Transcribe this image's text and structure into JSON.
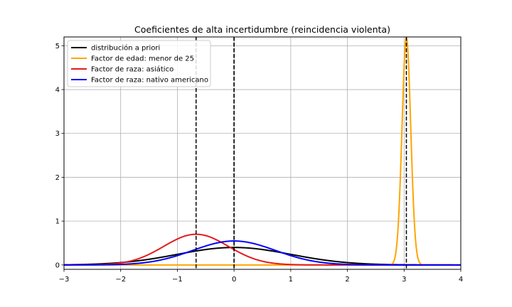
{
  "chart_data": {
    "type": "line",
    "title": "Coeficientes de alta incertidumbre (reincidencia violenta)",
    "xlabel": "",
    "ylabel": "",
    "xlim": [
      -3,
      4
    ],
    "ylim": [
      -0.1,
      5.2
    ],
    "x_ticks": [
      -3,
      -2,
      -1,
      0,
      1,
      2,
      3,
      4
    ],
    "x_tick_labels": [
      "−3",
      "−2",
      "−1",
      "0",
      "1",
      "2",
      "3",
      "4"
    ],
    "y_ticks": [
      0,
      1,
      2,
      3,
      4,
      5
    ],
    "y_tick_labels": [
      "0",
      "1",
      "2",
      "3",
      "4",
      "5"
    ],
    "grid": true,
    "legend_position": "top-left",
    "series": [
      {
        "name": "distribución a priori",
        "color": "#000000",
        "distribution": {
          "mean": 0.0,
          "sd": 1.0
        }
      },
      {
        "name": "Factor de edad: menor de 25",
        "color": "#ffa500",
        "distribution": {
          "mean": 3.04,
          "sd": 0.077
        }
      },
      {
        "name": "Factor de raza: asiático",
        "color": "#e41a1c",
        "distribution": {
          "mean": -0.67,
          "sd": 0.57
        }
      },
      {
        "name": "Factor de raza: nativo americano",
        "color": "#0000ff",
        "distribution": {
          "mean": 0.0,
          "sd": 0.73
        }
      }
    ],
    "vertical_lines": [
      {
        "x": -0.67,
        "style": "dashed",
        "color": "#000000"
      },
      {
        "x": 0.0,
        "style": "dashed",
        "color": "#000000"
      },
      {
        "x": 0.0,
        "style": "dashed",
        "color": "#000000"
      },
      {
        "x": 3.04,
        "style": "dashed",
        "color": "#000000"
      }
    ],
    "hline": {
      "y": 0,
      "color": "#000000"
    }
  }
}
